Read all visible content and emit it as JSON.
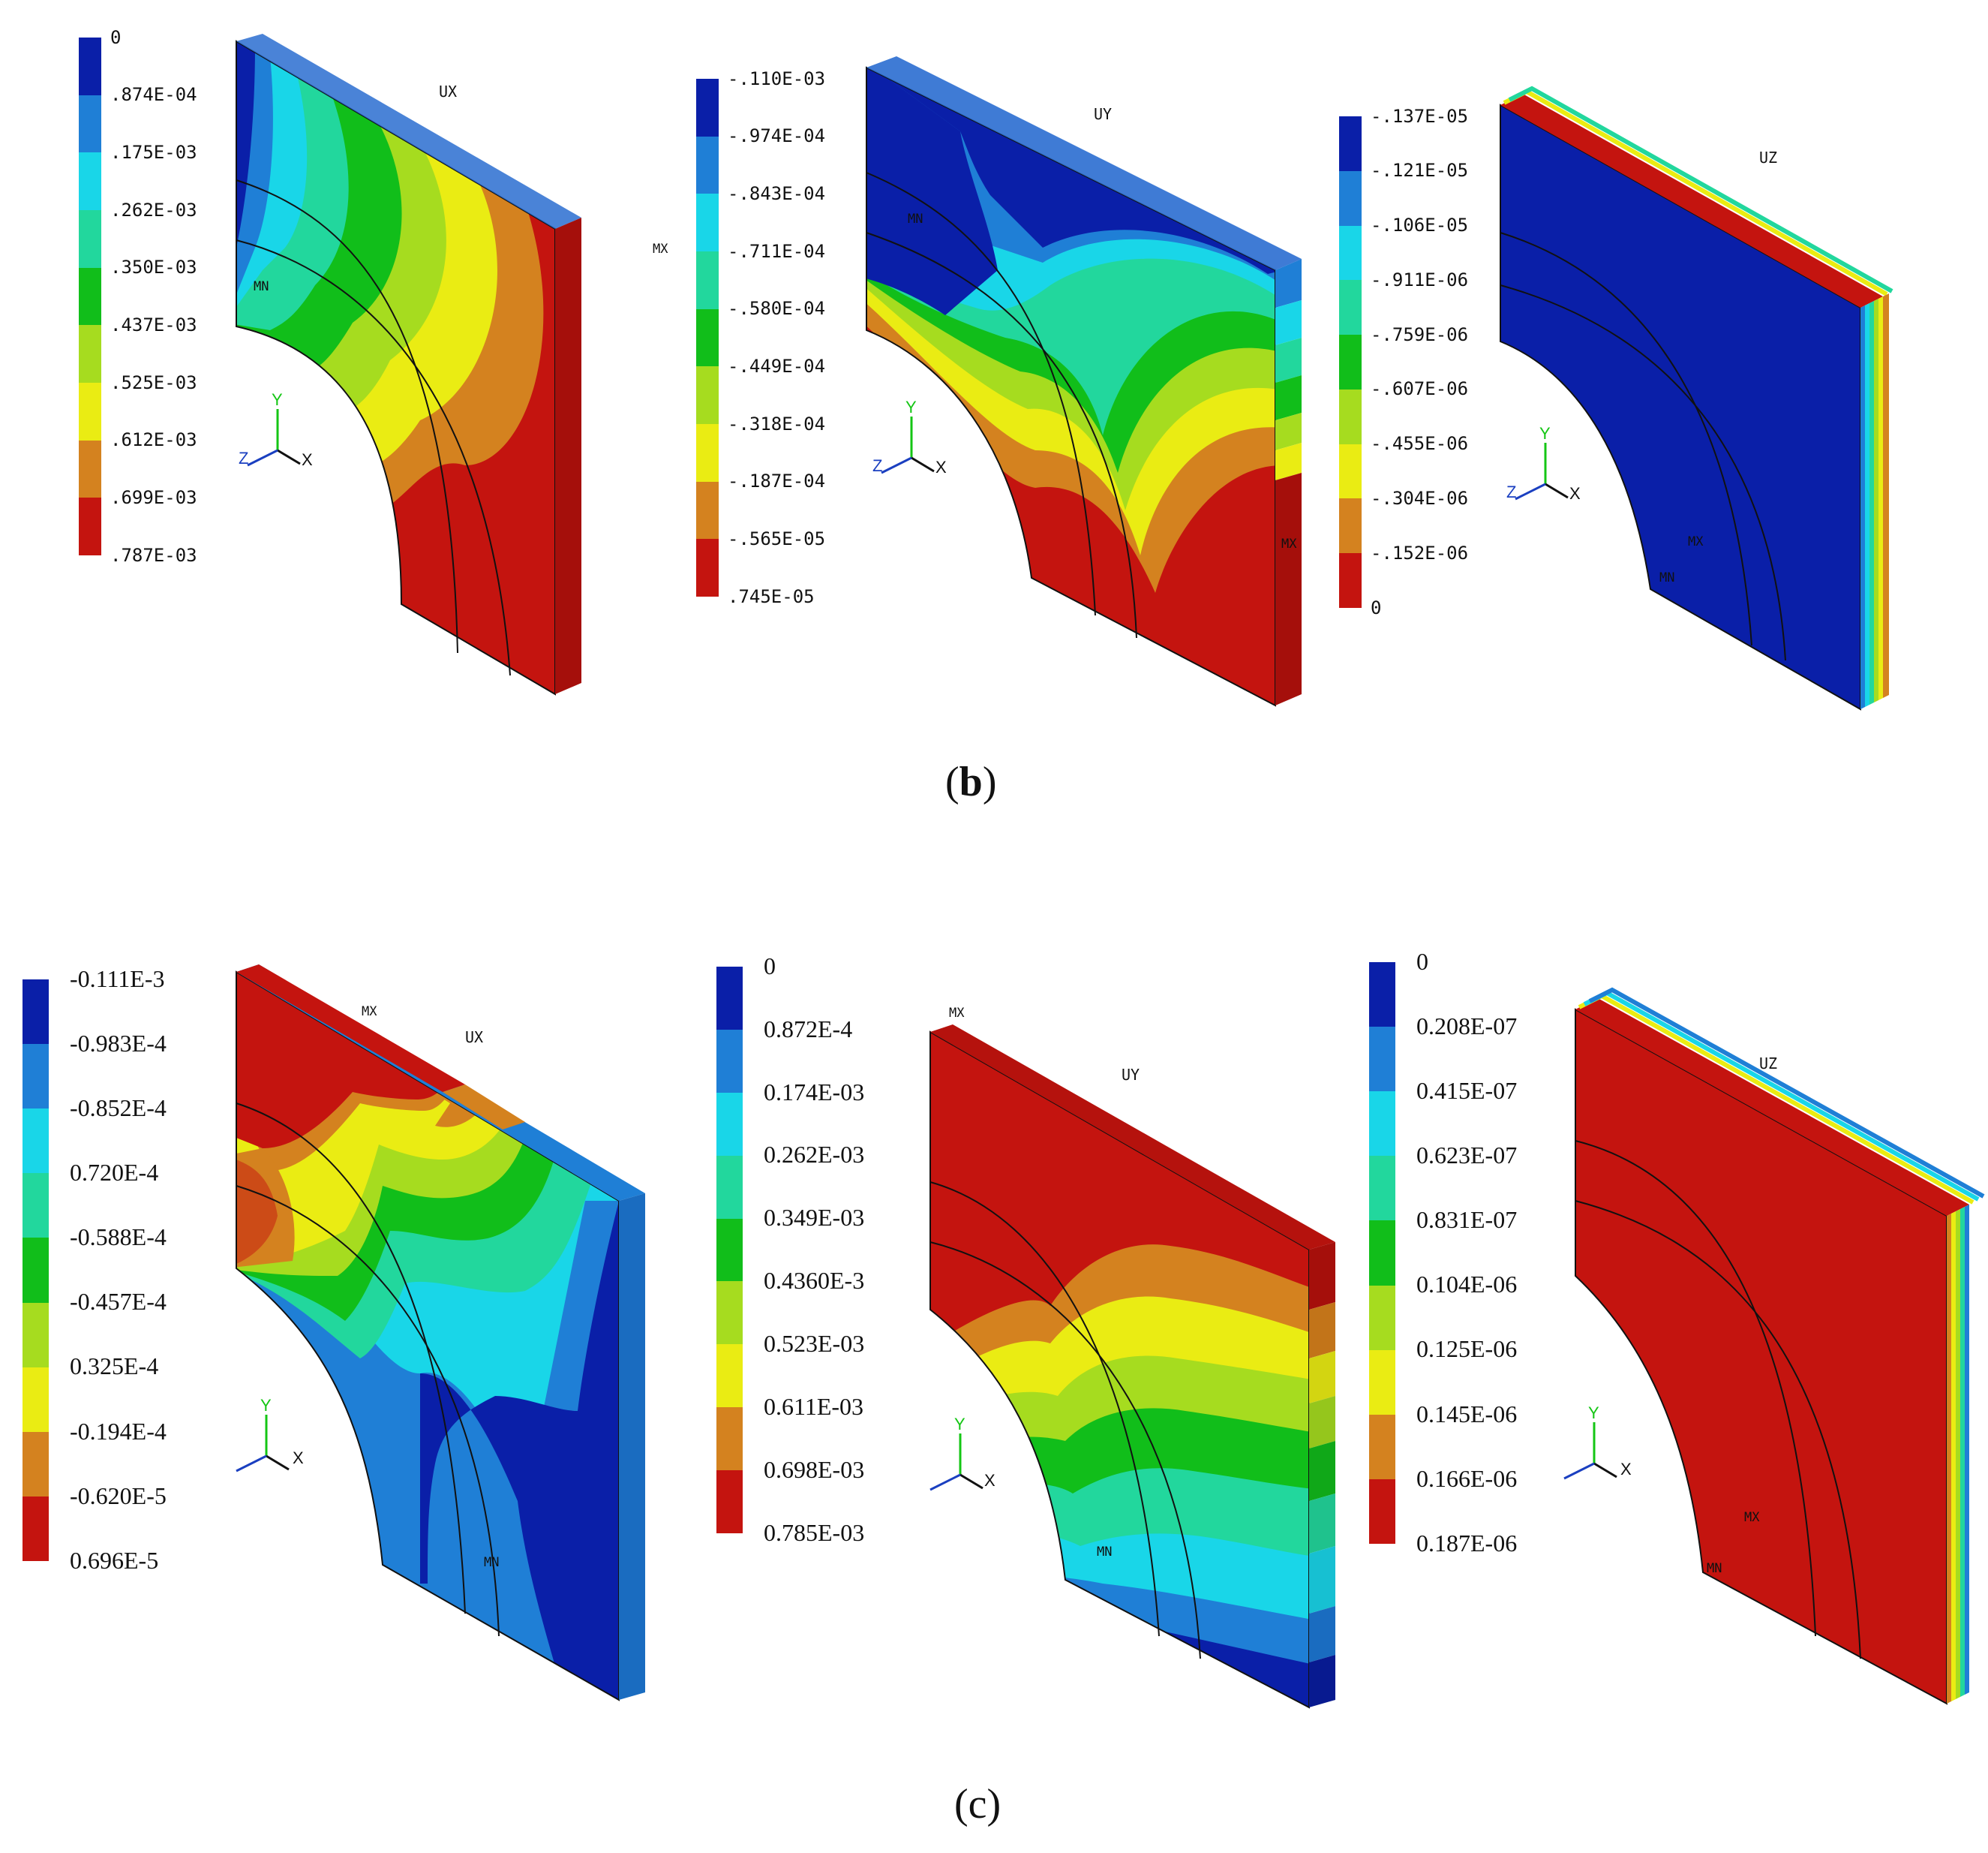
{
  "colors": [
    "#0a1fa8",
    "#1f7fd6",
    "#19d6e8",
    "#22d79d",
    "#11be1a",
    "#a6dc1f",
    "#eaec13",
    "#d4821f",
    "#c4140f"
  ],
  "captions": {
    "b": "b",
    "c": "c"
  },
  "panel_b": {
    "ux": {
      "label": "UX",
      "legend": [
        "0",
        ".874E-04",
        ".175E-03",
        ".262E-03",
        ".350E-03",
        ".437E-03",
        ".525E-03",
        ".612E-03",
        ".699E-03",
        ".787E-03"
      ],
      "mn": "MN",
      "mx": "MX"
    },
    "uy": {
      "label": "UY",
      "legend": [
        "-.110E-03",
        "-.974E-04",
        "-.843E-04",
        "-.711E-04",
        "-.580E-04",
        "-.449E-04",
        "-.318E-04",
        "-.187E-04",
        "-.565E-05",
        ".745E-05"
      ],
      "mn": "MN",
      "mx": "MX"
    },
    "uz": {
      "label": "UZ",
      "legend": [
        "-.137E-05",
        "-.121E-05",
        "-.106E-05",
        "-.911E-06",
        "-.759E-06",
        "-.607E-06",
        "-.455E-06",
        "-.304E-06",
        "-.152E-06",
        "0"
      ],
      "mx": "MX",
      "mn": "MN"
    }
  },
  "panel_c": {
    "ux": {
      "label": "UX",
      "legend": [
        "-0.111E-3",
        "-0.983E-4",
        "-0.852E-4",
        "0.720E-4",
        "-0.588E-4",
        "-0.457E-4",
        "0.325E-4",
        "-0.194E-4",
        "-0.620E-5",
        "0.696E-5"
      ],
      "mx": "MX",
      "mn": "MN"
    },
    "uy": {
      "label": "UY",
      "legend": [
        "0",
        "0.872E-4",
        "0.174E-03",
        "0.262E-03",
        "0.349E-03",
        "0.4360E-3",
        "0.523E-03",
        "0.611E-03",
        "0.698E-03",
        "0.785E-03"
      ],
      "mx": "MX",
      "mn": "MN"
    },
    "uz": {
      "label": "UZ",
      "legend": [
        "0",
        "0.208E-07",
        "0.415E-07",
        "0.623E-07",
        "0.831E-07",
        "0.104E-06",
        "0.125E-06",
        "0.145E-06",
        "0.166E-06",
        "0.187E-06"
      ],
      "mx": "MX",
      "mn": "MN"
    }
  },
  "axes": {
    "x": "X",
    "y": "Y",
    "z": "Z"
  }
}
